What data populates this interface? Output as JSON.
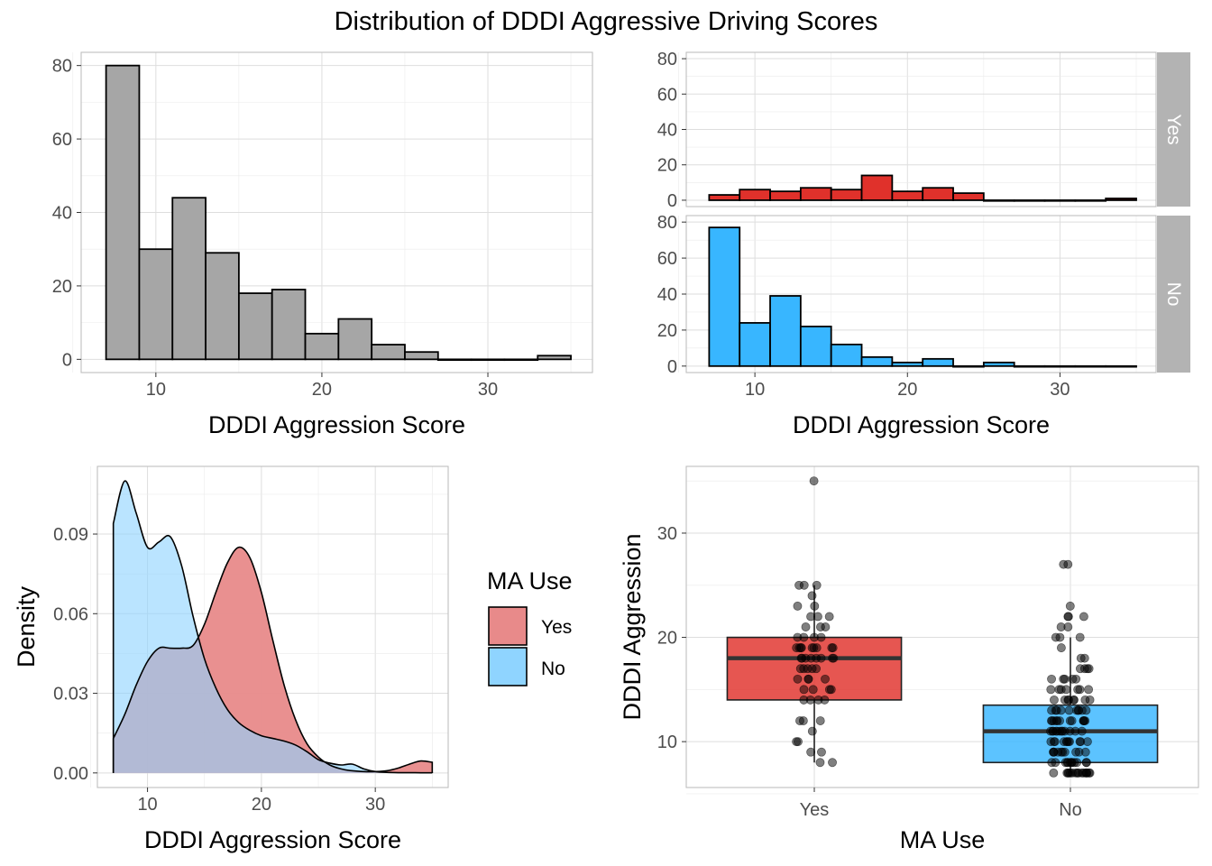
{
  "title": "Distribution of DDDI Aggressive Driving Scores",
  "colors": {
    "overall_fill": "#A6A6A6",
    "yes_fill": "#E0312B",
    "no_fill": "#38B6FF",
    "yes_density": "#E88A8A",
    "no_density": "#8FD4FF",
    "overlap_density": "#8A9BB8",
    "grid": "#DEDEDE",
    "panel_border": "#BFBFBF",
    "strip": "#B3B3B3",
    "tick_text": "#4D4D4D"
  },
  "chart_data": [
    {
      "type": "bar",
      "subtype": "histogram",
      "title": "",
      "xlabel": "DDDI Aggression Score",
      "ylabel": "",
      "xlim": [
        5.5,
        36.3
      ],
      "ylim": [
        -3.6,
        83.6
      ],
      "x_ticks": [
        10,
        20,
        30
      ],
      "y_ticks": [
        0,
        20,
        40,
        60,
        80
      ],
      "bins": [
        {
          "x0": 7,
          "x1": 9,
          "count": 80
        },
        {
          "x0": 9,
          "x1": 11,
          "count": 30
        },
        {
          "x0": 11,
          "x1": 13,
          "count": 44
        },
        {
          "x0": 13,
          "x1": 15,
          "count": 29
        },
        {
          "x0": 15,
          "x1": 17,
          "count": 18
        },
        {
          "x0": 17,
          "x1": 19,
          "count": 19
        },
        {
          "x0": 19,
          "x1": 21,
          "count": 7
        },
        {
          "x0": 21,
          "x1": 23,
          "count": 11
        },
        {
          "x0": 23,
          "x1": 25,
          "count": 4
        },
        {
          "x0": 25,
          "x1": 27,
          "count": 2
        },
        {
          "x0": 27,
          "x1": 29,
          "count": 0
        },
        {
          "x0": 29,
          "x1": 31,
          "count": 0
        },
        {
          "x0": 31,
          "x1": 33,
          "count": 0
        },
        {
          "x0": 33,
          "x1": 35,
          "count": 1
        }
      ],
      "grid": true
    },
    {
      "type": "bar",
      "subtype": "faceted-histogram",
      "title": "",
      "xlabel": "DDDI Aggression Score",
      "ylabel": "",
      "xlim": [
        5.5,
        36.3
      ],
      "ylim": [
        -3.6,
        83.6
      ],
      "x_ticks": [
        10,
        20,
        30
      ],
      "y_ticks": [
        0,
        20,
        40,
        60,
        80
      ],
      "bin_edges": [
        7,
        9,
        11,
        13,
        15,
        17,
        19,
        21,
        23,
        25,
        27,
        29,
        31,
        33,
        35
      ],
      "facets": [
        {
          "name": "Yes",
          "counts": [
            3,
            6,
            5,
            7,
            6,
            14,
            5,
            7,
            4,
            0,
            0,
            0,
            0,
            1
          ]
        },
        {
          "name": "No",
          "counts": [
            77,
            24,
            39,
            22,
            12,
            5,
            2,
            4,
            0,
            2,
            0,
            0,
            0,
            0
          ]
        }
      ],
      "grid": true
    },
    {
      "type": "area",
      "subtype": "density",
      "title": "",
      "xlabel": "DDDI Aggression Score",
      "ylabel": "Density",
      "xlim": [
        5.6,
        36.4
      ],
      "ylim": [
        -0.0055,
        0.1155
      ],
      "x_ticks": [
        10,
        20,
        30
      ],
      "y_ticks": [
        0,
        0.03,
        0.06,
        0.09
      ],
      "y_tick_labels": [
        "0.00",
        "0.03",
        "0.06",
        "0.09"
      ],
      "x": [
        7,
        8,
        9,
        10,
        11,
        12,
        13,
        14,
        15,
        16,
        17,
        18,
        19,
        20,
        21,
        22,
        23,
        24,
        25,
        26,
        27,
        28,
        29,
        30,
        31,
        32,
        33,
        34,
        35
      ],
      "series": [
        {
          "name": "Yes",
          "values": [
            0.013,
            0.022,
            0.033,
            0.042,
            0.047,
            0.047,
            0.047,
            0.048,
            0.056,
            0.068,
            0.079,
            0.085,
            0.081,
            0.068,
            0.05,
            0.033,
            0.02,
            0.011,
            0.006,
            0.003,
            0.0015,
            0.0008,
            0.0005,
            0.0005,
            0.0008,
            0.0018,
            0.0033,
            0.0045,
            0.004
          ]
        },
        {
          "name": "No",
          "values": [
            0.094,
            0.11,
            0.098,
            0.085,
            0.087,
            0.089,
            0.078,
            0.059,
            0.043,
            0.032,
            0.024,
            0.019,
            0.016,
            0.014,
            0.013,
            0.012,
            0.0105,
            0.008,
            0.005,
            0.0037,
            0.003,
            0.0033,
            0.0015,
            0.0005,
            0.0002,
            0.0001,
            0.0001,
            5e-05,
            5e-05
          ]
        }
      ],
      "legend": {
        "title": "MA Use",
        "entries": [
          "Yes",
          "No"
        ],
        "position": "right"
      },
      "grid": true
    },
    {
      "type": "box",
      "title": "",
      "xlabel": "MA Use",
      "ylabel": "DDDI Aggression",
      "categories": [
        "Yes",
        "No"
      ],
      "ylim": [
        5.6,
        36.4
      ],
      "y_ticks": [
        10,
        20,
        30
      ],
      "boxes": [
        {
          "name": "Yes",
          "q1": 14,
          "median": 18,
          "q3": 20,
          "whisker_low": 8,
          "whisker_high": 25,
          "points": [
            35,
            25,
            25,
            25,
            24,
            23,
            23,
            22,
            22,
            22,
            21,
            21,
            21,
            20,
            20,
            20,
            20,
            19,
            19,
            19,
            19,
            19,
            19,
            19,
            19,
            19,
            18,
            18,
            18,
            18,
            18,
            18,
            18,
            18,
            17,
            17,
            17,
            17,
            17,
            16,
            16,
            16,
            16,
            15,
            15,
            15,
            15,
            14,
            14,
            14,
            14,
            12,
            12,
            12,
            11,
            10,
            10,
            9,
            9,
            8,
            8
          ]
        },
        {
          "name": "No",
          "q1": 8,
          "median": 11,
          "q3": 13.5,
          "whisker_low": 7,
          "whisker_high": 20,
          "points": [
            27,
            27,
            23,
            22,
            22,
            22,
            21,
            21,
            20,
            20,
            20,
            19,
            18,
            18,
            17,
            17,
            17,
            17,
            16,
            16,
            16,
            16,
            16,
            15,
            15,
            15,
            15,
            15,
            15,
            15,
            14,
            14,
            14,
            14,
            14,
            14,
            14,
            14,
            13,
            13,
            13,
            13,
            13,
            13,
            13,
            13,
            13,
            13,
            12,
            12,
            12,
            12,
            12,
            12,
            12,
            12,
            12,
            12,
            12,
            12,
            11,
            11,
            11,
            11,
            11,
            11,
            11,
            11,
            11,
            11,
            11,
            11,
            10,
            10,
            10,
            10,
            10,
            10,
            10,
            10,
            10,
            10,
            10,
            9,
            9,
            9,
            9,
            9,
            9,
            9,
            9,
            9,
            9,
            8,
            8,
            8,
            8,
            8,
            8,
            8,
            8,
            8,
            8,
            8,
            8,
            7,
            7,
            7,
            7,
            7,
            7,
            7,
            7,
            7,
            7,
            7,
            7,
            7,
            7,
            7,
            7
          ]
        }
      ],
      "grid": true
    }
  ]
}
